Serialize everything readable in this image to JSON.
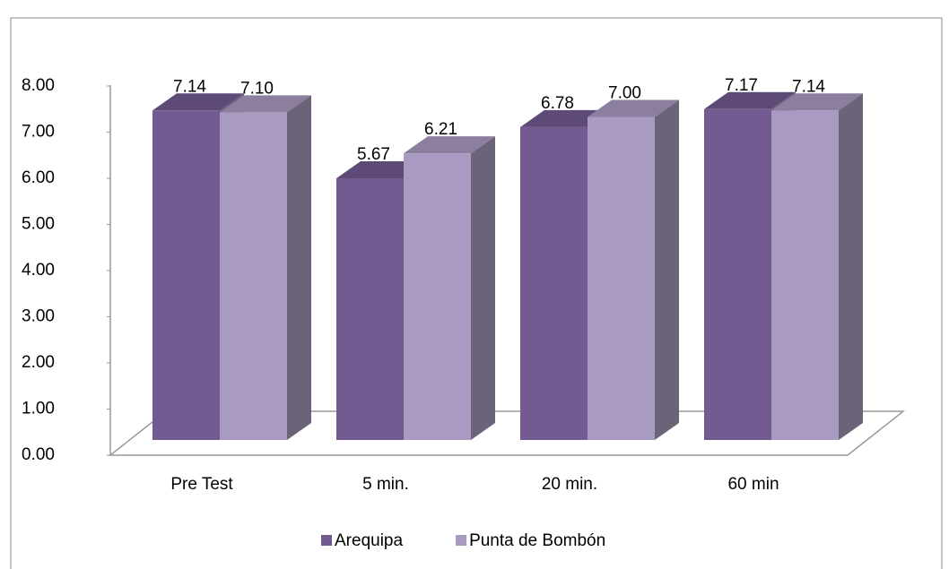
{
  "chart_data": {
    "type": "bar3d",
    "categories": [
      "Pre Test",
      "5 min.",
      "20 min.",
      "60 min"
    ],
    "series": [
      {
        "name": "Arequipa",
        "color": "#735a91",
        "values": [
          7.14,
          5.67,
          6.78,
          7.17
        ],
        "value_labels": [
          "7.14",
          "5.67",
          "6.78",
          "7.17"
        ]
      },
      {
        "name": "Punta de Bombón",
        "color": "#a99ac2",
        "values": [
          7.1,
          6.21,
          7.0,
          7.14
        ],
        "value_labels": [
          "7.10",
          "6.21",
          "7.00",
          "7.14"
        ]
      }
    ],
    "ylim": [
      0,
      8
    ],
    "yticks": [
      {
        "value": 0,
        "label": "0.00"
      },
      {
        "value": 1,
        "label": "1.00"
      },
      {
        "value": 2,
        "label": "2.00"
      },
      {
        "value": 3,
        "label": "3.00"
      },
      {
        "value": 4,
        "label": "4.00"
      },
      {
        "value": 5,
        "label": "5.00"
      },
      {
        "value": 6,
        "label": "6.00"
      },
      {
        "value": 7,
        "label": "7.00"
      },
      {
        "value": 8,
        "label": "8.00"
      }
    ],
    "legend": "bottom"
  }
}
